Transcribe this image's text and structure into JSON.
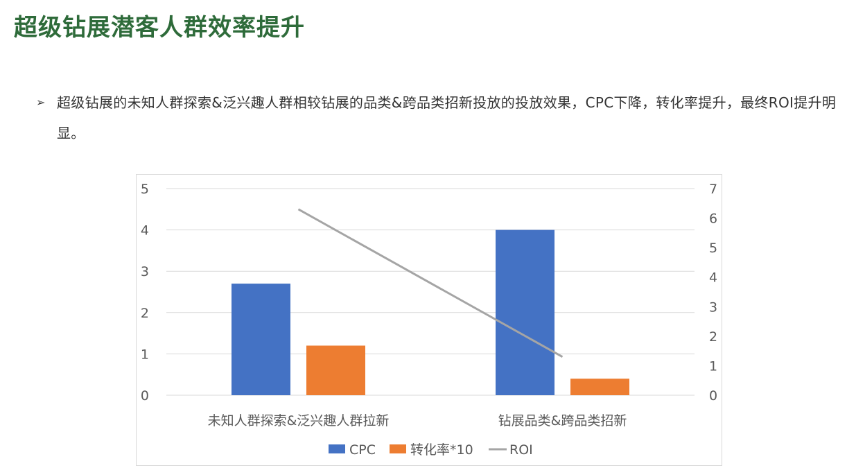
{
  "page": {
    "title": "超级钻展潜客人群效率提升",
    "bullet_marker": "➢",
    "bullet_text": "超级钻展的未知人群探索&泛兴趣人群相较钻展的品类&跨品类招新投放的投放效果，CPC下降，转化率提升，最终ROI提升明显。"
  },
  "chart_data": {
    "type": "bar",
    "categories": [
      "未知人群探索&泛兴趣人群拉新",
      "钻展品类&跨品类招新"
    ],
    "series": [
      {
        "name": "CPC",
        "kind": "bar",
        "axis": "left",
        "color": "#4472c4",
        "values": [
          2.7,
          4.0
        ]
      },
      {
        "name": "转化率*10",
        "kind": "bar",
        "axis": "left",
        "color": "#ed7d31",
        "values": [
          1.2,
          0.4
        ]
      },
      {
        "name": "ROI",
        "kind": "line",
        "axis": "right",
        "color": "#a5a5a5",
        "values": [
          6.3,
          1.3
        ]
      }
    ],
    "ylim": [
      0,
      5
    ],
    "y_ticks": [
      0,
      1,
      2,
      3,
      4,
      5
    ],
    "y2lim": [
      0,
      7
    ],
    "y2_ticks": [
      0,
      1,
      2,
      3,
      4,
      5,
      6,
      7
    ],
    "grid": true,
    "legend": "bottom",
    "xlabel": "",
    "ylabel": ""
  }
}
